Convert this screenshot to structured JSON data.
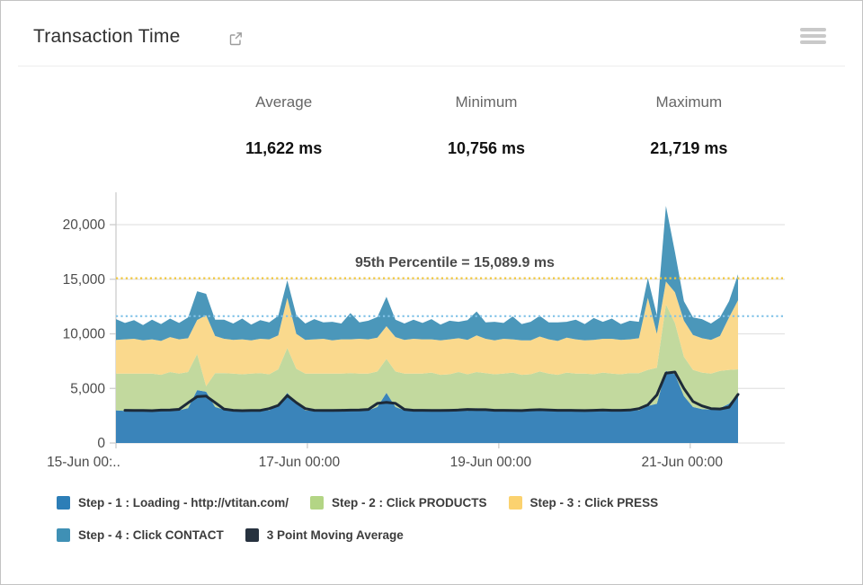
{
  "header": {
    "title": "Transaction Time"
  },
  "stats": [
    {
      "label": "Average",
      "value": "11,622 ms"
    },
    {
      "label": "Minimum",
      "value": "10,756 ms"
    },
    {
      "label": "Maximum",
      "value": "21,719 ms"
    }
  ],
  "chart_data": {
    "type": "area",
    "stacked": true,
    "annotation": "95th Percentile = 15,089.9 ms",
    "percentile_value": 15089.9,
    "average_line_value": 11622,
    "ylim": [
      0,
      22900
    ],
    "y_ticks": [
      0,
      5000,
      10000,
      15000,
      20000
    ],
    "y_tick_labels": [
      "0",
      "5,000",
      "10,000",
      "15,000",
      "20,000"
    ],
    "x_range_days": 6.5,
    "x_tick_positions_days": [
      0,
      2,
      4,
      6
    ],
    "x_tick_labels": [
      "15-Jun 00:..",
      "17-Jun 00:00",
      "19-Jun 00:00",
      "21-Jun 00:00"
    ],
    "grid": true,
    "colors": {
      "step1": "#3a84ba",
      "step2": "#c2d99e",
      "step3": "#fad98d",
      "step4": "#4b97ba",
      "moving_average": "#1d2a38",
      "percentile_line": "#f1c73e",
      "average_line": "#83c3e8",
      "gridline": "#e3e3e3",
      "axis": "#cdcdcd",
      "tick_label": "#4c4c4c"
    },
    "series": [
      {
        "name": "Step - 1 : Loading - http://vtitan.com/",
        "values": [
          3000,
          2950,
          3050,
          2900,
          3000,
          2950,
          3100,
          3000,
          3200,
          4850,
          4700,
          3300,
          3050,
          2950,
          3000,
          2900,
          3050,
          3000,
          3500,
          4600,
          3600,
          3000,
          2950,
          3050,
          2900,
          3000,
          3100,
          2950,
          3000,
          3300,
          4600,
          3300,
          3000,
          2950,
          3050,
          3000,
          2900,
          3000,
          3100,
          2950,
          3200,
          3000,
          2950,
          3050,
          3000,
          2900,
          3000,
          3150,
          3000,
          2950,
          3050,
          3000,
          2900,
          3000,
          3100,
          2950,
          3000,
          3050,
          3000,
          3400,
          3600,
          6600,
          6300,
          4300,
          3300,
          3100,
          3050,
          3200,
          3600,
          4550
        ]
      },
      {
        "name": "Step - 2 : Click PRODUCTS",
        "values": [
          3350,
          3400,
          3300,
          3450,
          3350,
          3300,
          3400,
          3350,
          3300,
          3300,
          500,
          3100,
          3350,
          3400,
          3300,
          3450,
          3350,
          3300,
          3250,
          4100,
          3200,
          3350,
          3400,
          3300,
          3450,
          3350,
          3300,
          3400,
          3350,
          3250,
          3100,
          3250,
          3350,
          3400,
          3300,
          3450,
          3350,
          3300,
          3400,
          3350,
          3300,
          3400,
          3350,
          3300,
          3450,
          3350,
          3300,
          3400,
          3350,
          3300,
          3400,
          3350,
          3450,
          3300,
          3350,
          3400,
          3300,
          3350,
          3400,
          3300,
          3300,
          6100,
          4700,
          3600,
          3400,
          3350,
          3300,
          3400,
          3100,
          2200
        ]
      },
      {
        "name": "Step - 3 : Click PRESS",
        "values": [
          3100,
          3150,
          3200,
          3050,
          3150,
          3100,
          3200,
          3150,
          3100,
          3120,
          6500,
          3400,
          3150,
          3100,
          3200,
          3050,
          3150,
          3200,
          3100,
          4600,
          3200,
          3100,
          3150,
          3200,
          3050,
          3150,
          3100,
          3200,
          3150,
          3100,
          3000,
          3150,
          3100,
          3200,
          3150,
          3050,
          3150,
          3200,
          3100,
          3150,
          3350,
          3150,
          3100,
          3200,
          3050,
          3150,
          3100,
          3200,
          3150,
          3100,
          3200,
          3150,
          3050,
          3150,
          3100,
          3200,
          3150,
          3100,
          3200,
          6600,
          3100,
          2100,
          2800,
          3300,
          3200,
          3150,
          3100,
          3200,
          4800,
          6325
        ]
      },
      {
        "name": "Step - 4 : Click CONTACT",
        "values": [
          1900,
          1500,
          1700,
          1400,
          1800,
          1550,
          1700,
          1500,
          1900,
          2630,
          1960,
          1500,
          1750,
          1500,
          1900,
          1450,
          1700,
          1550,
          1800,
          1600,
          1700,
          1500,
          1850,
          1500,
          1700,
          1450,
          2400,
          1500,
          1700,
          1900,
          2700,
          1600,
          1500,
          1750,
          1500,
          1850,
          1450,
          1700,
          1500,
          1800,
          2200,
          1500,
          1700,
          1450,
          2100,
          1500,
          1700,
          1900,
          1550,
          1700,
          1450,
          1800,
          1500,
          2000,
          1550,
          1850,
          1450,
          1700,
          1500,
          1800,
          1700,
          6919,
          3700,
          1800,
          1600,
          1750,
          1500,
          1700,
          1500,
          2375
        ]
      },
      {
        "name": "3 Point Moving Average",
        "render": "line",
        "values": [
          3000,
          3000,
          2980,
          2980,
          2960,
          3010,
          3020,
          3090,
          3680,
          4250,
          4300,
          3700,
          3100,
          3000,
          2960,
          2980,
          2990,
          3150,
          3450,
          4350,
          3700,
          3150,
          3000,
          2980,
          2980,
          3000,
          3010,
          3020,
          3080,
          3630,
          3730,
          3630,
          3080,
          3000,
          3000,
          2990,
          2980,
          3000,
          3020,
          3080,
          3050,
          3050,
          3000,
          3000,
          2980,
          2970,
          3020,
          3050,
          3030,
          3000,
          3000,
          2990,
          2970,
          3000,
          3020,
          3000,
          3000,
          3020,
          3150,
          3500,
          4400,
          6400,
          6500,
          5000,
          3800,
          3400,
          3150,
          3120,
          3280,
          4450
        ]
      }
    ]
  },
  "legend": [
    {
      "label": "Step - 1 : Loading - http://vtitan.com/",
      "color": "#2d7eb7"
    },
    {
      "label": "Step - 2 : Click PRODUCTS",
      "color": "#b3d585"
    },
    {
      "label": "Step - 3 : Click PRESS",
      "color": "#fbd26f"
    },
    {
      "label": "Step - 4 : Click CONTACT",
      "color": "#3f90b5"
    },
    {
      "label": "3 Point Moving Average",
      "color": "#27323f"
    }
  ]
}
